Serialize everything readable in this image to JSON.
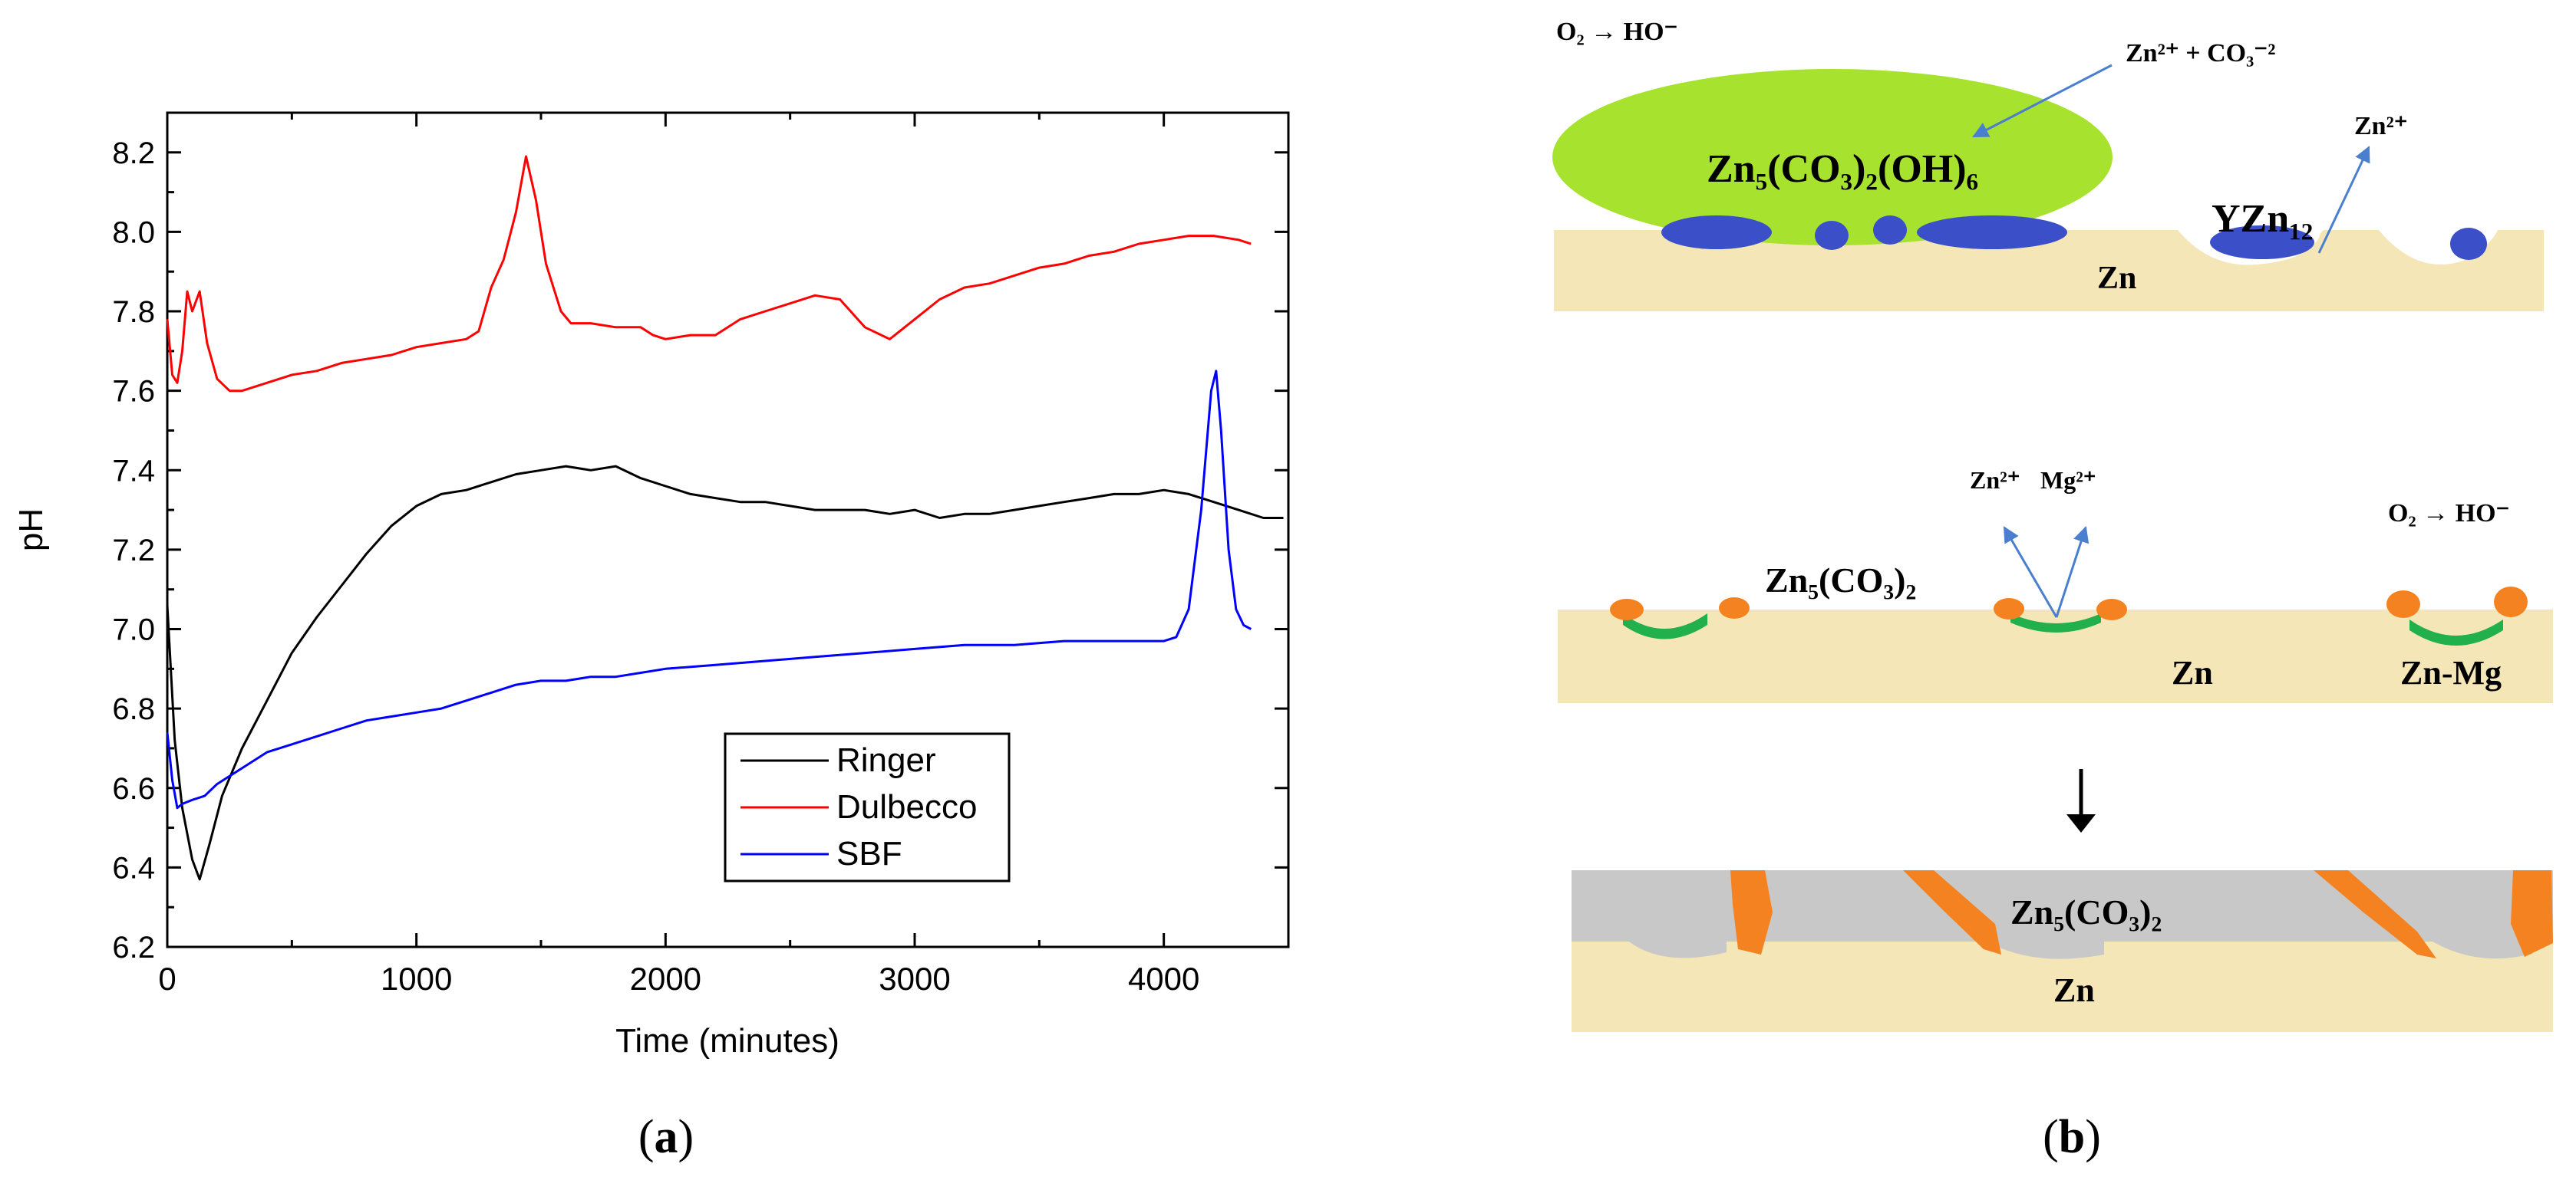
{
  "panel_a": {
    "caption": "(a)",
    "caption_letter": "a",
    "legend": [
      {
        "label": "Ringer",
        "color": "#000000"
      },
      {
        "label": "Dulbecco",
        "color": "#ff0000"
      },
      {
        "label": "SBF",
        "color": "#0000ff"
      }
    ]
  },
  "chart_data": {
    "type": "line",
    "xlabel": "Time (minutes)",
    "ylabel": "pH",
    "xlim": [
      0,
      4500
    ],
    "ylim": [
      6.2,
      8.3
    ],
    "xticks": [
      0,
      1000,
      2000,
      3000,
      4000
    ],
    "yticks": [
      6.2,
      6.4,
      6.6,
      6.8,
      7.0,
      7.2,
      7.4,
      7.6,
      7.8,
      8.0,
      8.2
    ],
    "ytick_labels": [
      "6.2",
      "6.4",
      "6.6",
      "6.8",
      "7.0",
      "7.2",
      "7.4",
      "7.6",
      "7.8",
      "8.0",
      "8.2"
    ],
    "grid": false,
    "legend_position": "bottom-right",
    "series": [
      {
        "name": "Ringer",
        "color": "#000000",
        "points": [
          [
            0,
            7.06
          ],
          [
            30,
            6.72
          ],
          [
            60,
            6.55
          ],
          [
            100,
            6.42
          ],
          [
            130,
            6.37
          ],
          [
            170,
            6.46
          ],
          [
            220,
            6.58
          ],
          [
            300,
            6.7
          ],
          [
            400,
            6.82
          ],
          [
            500,
            6.94
          ],
          [
            600,
            7.03
          ],
          [
            700,
            7.11
          ],
          [
            800,
            7.19
          ],
          [
            900,
            7.26
          ],
          [
            1000,
            7.31
          ],
          [
            1100,
            7.34
          ],
          [
            1200,
            7.35
          ],
          [
            1300,
            7.37
          ],
          [
            1400,
            7.39
          ],
          [
            1500,
            7.4
          ],
          [
            1600,
            7.41
          ],
          [
            1700,
            7.4
          ],
          [
            1800,
            7.41
          ],
          [
            1900,
            7.38
          ],
          [
            2000,
            7.36
          ],
          [
            2100,
            7.34
          ],
          [
            2200,
            7.33
          ],
          [
            2300,
            7.32
          ],
          [
            2400,
            7.32
          ],
          [
            2500,
            7.31
          ],
          [
            2600,
            7.3
          ],
          [
            2700,
            7.3
          ],
          [
            2800,
            7.3
          ],
          [
            2900,
            7.29
          ],
          [
            3000,
            7.3
          ],
          [
            3100,
            7.28
          ],
          [
            3200,
            7.29
          ],
          [
            3300,
            7.29
          ],
          [
            3400,
            7.3
          ],
          [
            3500,
            7.31
          ],
          [
            3600,
            7.32
          ],
          [
            3700,
            7.33
          ],
          [
            3800,
            7.34
          ],
          [
            3900,
            7.34
          ],
          [
            4000,
            7.35
          ],
          [
            4100,
            7.34
          ],
          [
            4200,
            7.32
          ],
          [
            4300,
            7.3
          ],
          [
            4400,
            7.28
          ],
          [
            4480,
            7.28
          ]
        ]
      },
      {
        "name": "Dulbecco",
        "color": "#ff0000",
        "points": [
          [
            0,
            7.78
          ],
          [
            20,
            7.64
          ],
          [
            40,
            7.62
          ],
          [
            60,
            7.7
          ],
          [
            80,
            7.85
          ],
          [
            100,
            7.8
          ],
          [
            130,
            7.85
          ],
          [
            160,
            7.72
          ],
          [
            200,
            7.63
          ],
          [
            250,
            7.6
          ],
          [
            300,
            7.6
          ],
          [
            400,
            7.62
          ],
          [
            500,
            7.64
          ],
          [
            600,
            7.65
          ],
          [
            700,
            7.67
          ],
          [
            800,
            7.68
          ],
          [
            900,
            7.69
          ],
          [
            1000,
            7.71
          ],
          [
            1100,
            7.72
          ],
          [
            1200,
            7.73
          ],
          [
            1250,
            7.75
          ],
          [
            1300,
            7.86
          ],
          [
            1350,
            7.93
          ],
          [
            1400,
            8.05
          ],
          [
            1440,
            8.19
          ],
          [
            1480,
            8.08
          ],
          [
            1520,
            7.92
          ],
          [
            1580,
            7.8
          ],
          [
            1620,
            7.77
          ],
          [
            1700,
            7.77
          ],
          [
            1800,
            7.76
          ],
          [
            1900,
            7.76
          ],
          [
            1950,
            7.74
          ],
          [
            2000,
            7.73
          ],
          [
            2100,
            7.74
          ],
          [
            2200,
            7.74
          ],
          [
            2300,
            7.78
          ],
          [
            2400,
            7.8
          ],
          [
            2500,
            7.82
          ],
          [
            2600,
            7.84
          ],
          [
            2700,
            7.83
          ],
          [
            2800,
            7.76
          ],
          [
            2900,
            7.73
          ],
          [
            3000,
            7.78
          ],
          [
            3100,
            7.83
          ],
          [
            3200,
            7.86
          ],
          [
            3300,
            7.87
          ],
          [
            3400,
            7.89
          ],
          [
            3500,
            7.91
          ],
          [
            3600,
            7.92
          ],
          [
            3700,
            7.94
          ],
          [
            3800,
            7.95
          ],
          [
            3900,
            7.97
          ],
          [
            4000,
            7.98
          ],
          [
            4100,
            7.99
          ],
          [
            4200,
            7.99
          ],
          [
            4300,
            7.98
          ],
          [
            4350,
            7.97
          ]
        ]
      },
      {
        "name": "SBF",
        "color": "#0000ff",
        "points": [
          [
            0,
            6.74
          ],
          [
            20,
            6.62
          ],
          [
            40,
            6.55
          ],
          [
            60,
            6.56
          ],
          [
            100,
            6.57
          ],
          [
            150,
            6.58
          ],
          [
            200,
            6.61
          ],
          [
            300,
            6.65
          ],
          [
            400,
            6.69
          ],
          [
            500,
            6.71
          ],
          [
            600,
            6.73
          ],
          [
            700,
            6.75
          ],
          [
            800,
            6.77
          ],
          [
            900,
            6.78
          ],
          [
            1000,
            6.79
          ],
          [
            1100,
            6.8
          ],
          [
            1200,
            6.82
          ],
          [
            1300,
            6.84
          ],
          [
            1400,
            6.86
          ],
          [
            1500,
            6.87
          ],
          [
            1600,
            6.87
          ],
          [
            1700,
            6.88
          ],
          [
            1800,
            6.88
          ],
          [
            1900,
            6.89
          ],
          [
            2000,
            6.9
          ],
          [
            2200,
            6.91
          ],
          [
            2400,
            6.92
          ],
          [
            2600,
            6.93
          ],
          [
            2800,
            6.94
          ],
          [
            3000,
            6.95
          ],
          [
            3200,
            6.96
          ],
          [
            3400,
            6.96
          ],
          [
            3600,
            6.97
          ],
          [
            3800,
            6.97
          ],
          [
            4000,
            6.97
          ],
          [
            4050,
            6.98
          ],
          [
            4100,
            7.05
          ],
          [
            4150,
            7.3
          ],
          [
            4190,
            7.6
          ],
          [
            4210,
            7.65
          ],
          [
            4230,
            7.5
          ],
          [
            4260,
            7.2
          ],
          [
            4290,
            7.05
          ],
          [
            4320,
            7.01
          ],
          [
            4350,
            7.0
          ]
        ]
      }
    ]
  },
  "panel_b": {
    "caption": "(b)",
    "caption_letter": "b",
    "top": {
      "reaction": "O₂ → HO⁻",
      "ions_in": "Zn²⁺ + CO₃⁻²",
      "product": "Zn₅(CO₃)₂(OH)₆",
      "phase": "YZn₁₂",
      "ion_out": "Zn²⁺",
      "substrate": "Zn",
      "colors": {
        "product": "#a6e22e",
        "substrate": "#f5e6b8",
        "phase": "#3a4fc8",
        "arrow": "#4a7fd0"
      }
    },
    "middle": {
      "ion1": "Zn²⁺",
      "ion2": "Mg²⁺",
      "reaction": "O₂ → HO⁻",
      "product": "Zn₅(CO₃)₂",
      "substrate": "Zn",
      "alloy": "Zn-Mg",
      "colors": {
        "orange": "#f58220",
        "green": "#21b04b"
      }
    },
    "bottom": {
      "product": "Zn₅(CO₃)₂",
      "substrate": "Zn",
      "colors": {
        "layer": "#c8c8c8",
        "substrate": "#f5e6b8",
        "orange": "#f58220"
      }
    }
  }
}
